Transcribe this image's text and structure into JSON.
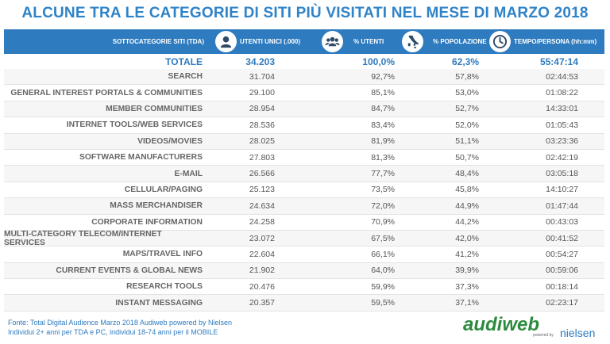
{
  "title": "ALCUNE TRA LE CATEGORIE DI SITI PIÙ VISITATI NEL MESE DI MARZO 2018",
  "header": {
    "label": "SOTTOCATEGORIE SITI  (TDA)",
    "cols": [
      {
        "label": "UTENTI UNICI (.000)",
        "icon": "user-icon"
      },
      {
        "label": "% UTENTI",
        "icon": "group-icon"
      },
      {
        "label": "% POPOLAZIONE",
        "icon": "italy-map-icon"
      },
      {
        "label": "TEMPO/PERSONA (hh:mm)",
        "icon": "clock-icon"
      }
    ]
  },
  "totale": {
    "name": "TOTALE",
    "utenti": "34.203",
    "pct_utenti": "100,0%",
    "pct_pop": "62,3%",
    "tempo": "55:47:14"
  },
  "rows": [
    {
      "name": "SEARCH",
      "utenti": "31.704",
      "pct_utenti": "92,7%",
      "pct_pop": "57,8%",
      "tempo": "02:44:53"
    },
    {
      "name": "GENERAL INTEREST PORTALS & COMMUNITIES",
      "utenti": "29.100",
      "pct_utenti": "85,1%",
      "pct_pop": "53,0%",
      "tempo": "01:08:22"
    },
    {
      "name": "MEMBER COMMUNITIES",
      "utenti": "28.954",
      "pct_utenti": "84,7%",
      "pct_pop": "52,7%",
      "tempo": "14:33:01"
    },
    {
      "name": "INTERNET TOOLS/WEB SERVICES",
      "utenti": "28.536",
      "pct_utenti": "83,4%",
      "pct_pop": "52,0%",
      "tempo": "01:05:43"
    },
    {
      "name": "VIDEOS/MOVIES",
      "utenti": "28.025",
      "pct_utenti": "81,9%",
      "pct_pop": "51,1%",
      "tempo": "03:23:36"
    },
    {
      "name": "SOFTWARE MANUFACTURERS",
      "utenti": "27.803",
      "pct_utenti": "81,3%",
      "pct_pop": "50,7%",
      "tempo": "02:42:19"
    },
    {
      "name": "E-MAIL",
      "utenti": "26.566",
      "pct_utenti": "77,7%",
      "pct_pop": "48,4%",
      "tempo": "03:05:18"
    },
    {
      "name": "CELLULAR/PAGING",
      "utenti": "25.123",
      "pct_utenti": "73,5%",
      "pct_pop": "45,8%",
      "tempo": "14:10:27"
    },
    {
      "name": "MASS MERCHANDISER",
      "utenti": "24.634",
      "pct_utenti": "72,0%",
      "pct_pop": "44,9%",
      "tempo": "01:47:44"
    },
    {
      "name": "CORPORATE INFORMATION",
      "utenti": "24.258",
      "pct_utenti": "70,9%",
      "pct_pop": "44,2%",
      "tempo": "00:43:03"
    },
    {
      "name": "MULTI-CATEGORY TELECOM/INTERNET SERVICES",
      "utenti": "23.072",
      "pct_utenti": "67,5%",
      "pct_pop": "42,0%",
      "tempo": "00:41:52"
    },
    {
      "name": "MAPS/TRAVEL INFO",
      "utenti": "22.604",
      "pct_utenti": "66,1%",
      "pct_pop": "41,2%",
      "tempo": "00:54:27"
    },
    {
      "name": "CURRENT EVENTS & GLOBAL NEWS",
      "utenti": "21.902",
      "pct_utenti": "64,0%",
      "pct_pop": "39,9%",
      "tempo": "00:59:06"
    },
    {
      "name": "RESEARCH TOOLS",
      "utenti": "20.476",
      "pct_utenti": "59,9%",
      "pct_pop": "37,3%",
      "tempo": "00:18:14"
    },
    {
      "name": "INSTANT MESSAGING",
      "utenti": "20.357",
      "pct_utenti": "59,5%",
      "pct_pop": "37,1%",
      "tempo": "02:23:17"
    }
  ],
  "footer": {
    "line1": "Fonte: Total Digital Audience Marzo 2018 Audiweb powered by Nielsen",
    "line2": "Individui 2+ anni per TDA e PC, individui 18-74 anni per il MOBILE"
  },
  "logo": {
    "brand": "audiweb",
    "powered": "powered by",
    "partner": "nielsen"
  },
  "colors": {
    "accent": "#2e7bbf",
    "title": "#2f83c8",
    "logo_green": "#2d8a3e"
  }
}
